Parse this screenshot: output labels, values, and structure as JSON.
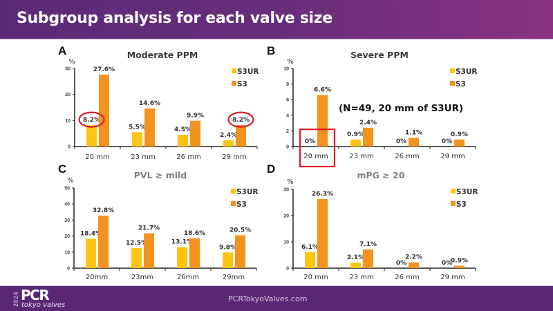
{
  "slide": {
    "title": "Subgroup analysis for each valve size"
  },
  "footer": {
    "logo_year": "2024",
    "logo_main": "PCR",
    "logo_sub": "tokyo valves",
    "url": "PCRTokyoValves.com"
  },
  "colors": {
    "s3ur": "#fdc513",
    "s3": "#f3921f",
    "highlight": "#e01b22",
    "title_dark": "#3a3a3a",
    "title_gray": "#808080"
  },
  "chart_data": [
    {
      "panel": "A",
      "type": "bar",
      "title": "Moderate PPM",
      "title_style": "dark",
      "ylabel": "%",
      "xlabel": "",
      "ylim": [
        0,
        30
      ],
      "yticks": [
        0,
        10,
        20,
        30
      ],
      "categories": [
        "20 mm",
        "23 mm",
        "26 mm",
        "29 mm"
      ],
      "series": [
        {
          "name": "S3UR",
          "values": [
            8.2,
            5.5,
            4.5,
            2.4
          ],
          "labels": [
            "8.2%",
            "5.5%",
            "4.5%",
            "2.4%"
          ]
        },
        {
          "name": "S3",
          "values": [
            27.6,
            14.6,
            9.9,
            8.2
          ],
          "labels": [
            "27.6%",
            "14.6%",
            "9.9%",
            "8.2%"
          ]
        }
      ],
      "legend": "top-right",
      "grid": false,
      "circled_labels": [
        {
          "series": "S3UR",
          "category": "20 mm"
        },
        {
          "series": "S3",
          "category": "29 mm"
        }
      ]
    },
    {
      "panel": "B",
      "type": "bar",
      "title": "Severe PPM",
      "title_style": "dark",
      "ylabel": "%",
      "xlabel": "",
      "ylim": [
        0,
        10
      ],
      "yticks": [
        0,
        2,
        4,
        6,
        8,
        10
      ],
      "categories": [
        "20 mm",
        "23 mm",
        "26 mm",
        "29 mm"
      ],
      "series": [
        {
          "name": "S3UR",
          "values": [
            0,
            0.9,
            0,
            0
          ],
          "labels": [
            "0%",
            "0.9%",
            "0%",
            "0%"
          ]
        },
        {
          "name": "S3",
          "values": [
            6.6,
            2.4,
            1.1,
            0.9
          ],
          "labels": [
            "6.6%",
            "2.4%",
            "1.1%",
            "0.9%"
          ]
        }
      ],
      "legend": "top-right",
      "grid": false,
      "annotation": "(N=49, 20 mm of S3UR)",
      "boxed_category": "20 mm"
    },
    {
      "panel": "C",
      "type": "bar",
      "title": "PVL ≥ mild",
      "title_style": "gray",
      "ylabel": "%",
      "xlabel": "",
      "ylim": [
        0,
        50
      ],
      "yticks": [
        0,
        10,
        20,
        30,
        40,
        50
      ],
      "categories": [
        "20mm",
        "23mm",
        "26mm",
        "29mm"
      ],
      "series": [
        {
          "name": "S3UR",
          "values": [
            18.4,
            12.5,
            13.1,
            9.8
          ],
          "labels": [
            "18.4%",
            "12.5%",
            "13.1%",
            "9.8%"
          ]
        },
        {
          "name": "S3",
          "values": [
            32.8,
            21.7,
            18.6,
            20.5
          ],
          "labels": [
            "32.8%",
            "21.7%",
            "18.6%",
            "20.5%"
          ]
        }
      ],
      "legend": "top-right",
      "grid": false
    },
    {
      "panel": "D",
      "type": "bar",
      "title": "mPG ≥ 20",
      "title_style": "gray",
      "ylabel": "%",
      "xlabel": "",
      "ylim": [
        0,
        30
      ],
      "yticks": [
        0,
        10,
        20,
        30
      ],
      "categories": [
        "20 mm",
        "23 mm",
        "26 mm",
        "29 mm"
      ],
      "series": [
        {
          "name": "S3UR",
          "values": [
            6.1,
            2.1,
            0,
            0
          ],
          "labels": [
            "6.1%",
            "2.1%",
            "0%",
            "0%"
          ]
        },
        {
          "name": "S3",
          "values": [
            26.3,
            7.1,
            2.2,
            0.9
          ],
          "labels": [
            "26.3%",
            "7.1%",
            "2.2%",
            "0.9%"
          ]
        }
      ],
      "legend": "top-right",
      "grid": false
    }
  ]
}
